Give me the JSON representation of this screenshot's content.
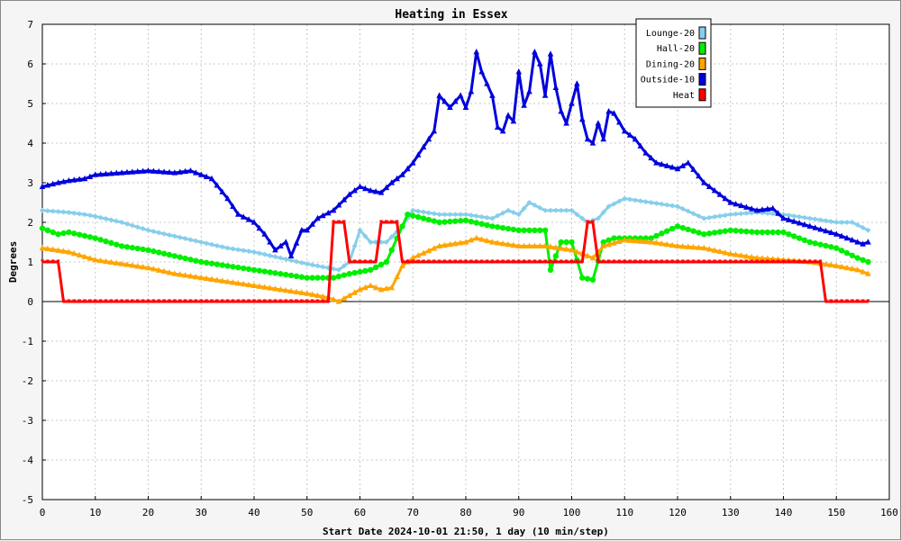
{
  "chart_data": {
    "type": "line",
    "title": "Heating in Essex",
    "xlabel": "Start Date 2024-10-01 21:50, 1 day (10 min/step)",
    "ylabel": "Degrees",
    "xlim": [
      0,
      160
    ],
    "ylim": [
      -5,
      7
    ],
    "x_ticks": [
      0,
      10,
      20,
      30,
      40,
      50,
      60,
      70,
      80,
      90,
      100,
      110,
      120,
      130,
      140,
      150,
      160
    ],
    "y_ticks": [
      -5,
      -4,
      -3,
      -2,
      -1,
      0,
      1,
      2,
      3,
      4,
      5,
      6,
      7
    ],
    "grid": true,
    "legend_position": "top-right",
    "series": [
      {
        "name": "Lounge-20",
        "color": "#87ceeb",
        "marker": "diamond",
        "points": [
          [
            0,
            2.3
          ],
          [
            5,
            2.25
          ],
          [
            8,
            2.2
          ],
          [
            10,
            2.15
          ],
          [
            15,
            2.0
          ],
          [
            20,
            1.8
          ],
          [
            25,
            1.65
          ],
          [
            30,
            1.5
          ],
          [
            35,
            1.35
          ],
          [
            40,
            1.25
          ],
          [
            45,
            1.1
          ],
          [
            50,
            0.95
          ],
          [
            54,
            0.85
          ],
          [
            56,
            0.8
          ],
          [
            58,
            1.0
          ],
          [
            60,
            1.8
          ],
          [
            62,
            1.5
          ],
          [
            65,
            1.5
          ],
          [
            68,
            1.9
          ],
          [
            70,
            2.3
          ],
          [
            75,
            2.2
          ],
          [
            80,
            2.2
          ],
          [
            85,
            2.1
          ],
          [
            88,
            2.3
          ],
          [
            90,
            2.2
          ],
          [
            92,
            2.5
          ],
          [
            95,
            2.3
          ],
          [
            100,
            2.3
          ],
          [
            103,
            2.0
          ],
          [
            105,
            2.1
          ],
          [
            107,
            2.4
          ],
          [
            110,
            2.6
          ],
          [
            115,
            2.5
          ],
          [
            120,
            2.4
          ],
          [
            125,
            2.1
          ],
          [
            130,
            2.2
          ],
          [
            135,
            2.25
          ],
          [
            140,
            2.2
          ],
          [
            145,
            2.1
          ],
          [
            150,
            2.0
          ],
          [
            153,
            2.0
          ],
          [
            156,
            1.8
          ]
        ]
      },
      {
        "name": "Hall-20",
        "color": "#00ee00",
        "marker": "circle",
        "points": [
          [
            0,
            1.85
          ],
          [
            3,
            1.7
          ],
          [
            5,
            1.75
          ],
          [
            10,
            1.6
          ],
          [
            15,
            1.4
          ],
          [
            20,
            1.3
          ],
          [
            25,
            1.15
          ],
          [
            30,
            1.0
          ],
          [
            35,
            0.9
          ],
          [
            40,
            0.8
          ],
          [
            45,
            0.7
          ],
          [
            50,
            0.6
          ],
          [
            55,
            0.6
          ],
          [
            58,
            0.7
          ],
          [
            62,
            0.8
          ],
          [
            65,
            1.0
          ],
          [
            67,
            1.6
          ],
          [
            69,
            2.2
          ],
          [
            72,
            2.1
          ],
          [
            75,
            2.0
          ],
          [
            80,
            2.05
          ],
          [
            85,
            1.9
          ],
          [
            90,
            1.8
          ],
          [
            95,
            1.8
          ],
          [
            96,
            0.8
          ],
          [
            98,
            1.5
          ],
          [
            100,
            1.5
          ],
          [
            102,
            0.6
          ],
          [
            104,
            0.55
          ],
          [
            106,
            1.5
          ],
          [
            108,
            1.6
          ],
          [
            115,
            1.6
          ],
          [
            120,
            1.9
          ],
          [
            125,
            1.7
          ],
          [
            130,
            1.8
          ],
          [
            135,
            1.75
          ],
          [
            140,
            1.75
          ],
          [
            145,
            1.5
          ],
          [
            150,
            1.35
          ],
          [
            154,
            1.1
          ],
          [
            156,
            1.0
          ]
        ]
      },
      {
        "name": "Dining-20",
        "color": "#ffa500",
        "marker": "triangle",
        "points": [
          [
            0,
            1.35
          ],
          [
            5,
            1.25
          ],
          [
            10,
            1.05
          ],
          [
            15,
            0.95
          ],
          [
            20,
            0.85
          ],
          [
            25,
            0.7
          ],
          [
            30,
            0.6
          ],
          [
            35,
            0.5
          ],
          [
            40,
            0.4
          ],
          [
            45,
            0.3
          ],
          [
            50,
            0.2
          ],
          [
            54,
            0.1
          ],
          [
            56,
            0.0
          ],
          [
            58,
            0.15
          ],
          [
            60,
            0.3
          ],
          [
            62,
            0.4
          ],
          [
            64,
            0.3
          ],
          [
            66,
            0.35
          ],
          [
            68,
            0.9
          ],
          [
            70,
            1.1
          ],
          [
            75,
            1.4
          ],
          [
            80,
            1.5
          ],
          [
            82,
            1.6
          ],
          [
            85,
            1.5
          ],
          [
            90,
            1.4
          ],
          [
            95,
            1.4
          ],
          [
            100,
            1.3
          ],
          [
            104,
            1.1
          ],
          [
            106,
            1.4
          ],
          [
            110,
            1.55
          ],
          [
            115,
            1.5
          ],
          [
            120,
            1.4
          ],
          [
            125,
            1.35
          ],
          [
            130,
            1.2
          ],
          [
            135,
            1.1
          ],
          [
            140,
            1.05
          ],
          [
            145,
            1.0
          ],
          [
            150,
            0.9
          ],
          [
            154,
            0.8
          ],
          [
            156,
            0.7
          ]
        ]
      },
      {
        "name": "Outside-10",
        "color": "#0000dd",
        "marker": "triangle",
        "points": [
          [
            0,
            2.9
          ],
          [
            3,
            3.0
          ],
          [
            5,
            3.05
          ],
          [
            8,
            3.1
          ],
          [
            10,
            3.2
          ],
          [
            15,
            3.25
          ],
          [
            20,
            3.3
          ],
          [
            25,
            3.25
          ],
          [
            28,
            3.3
          ],
          [
            32,
            3.1
          ],
          [
            35,
            2.6
          ],
          [
            37,
            2.2
          ],
          [
            40,
            2.0
          ],
          [
            42,
            1.7
          ],
          [
            44,
            1.3
          ],
          [
            46,
            1.5
          ],
          [
            47,
            1.15
          ],
          [
            49,
            1.8
          ],
          [
            50,
            1.8
          ],
          [
            52,
            2.1
          ],
          [
            55,
            2.3
          ],
          [
            58,
            2.7
          ],
          [
            60,
            2.9
          ],
          [
            62,
            2.8
          ],
          [
            64,
            2.75
          ],
          [
            66,
            3.0
          ],
          [
            68,
            3.2
          ],
          [
            70,
            3.5
          ],
          [
            72,
            3.9
          ],
          [
            74,
            4.3
          ],
          [
            75,
            5.2
          ],
          [
            77,
            4.9
          ],
          [
            79,
            5.2
          ],
          [
            80,
            4.9
          ],
          [
            81,
            5.3
          ],
          [
            82,
            6.3
          ],
          [
            83,
            5.8
          ],
          [
            85,
            5.2
          ],
          [
            86,
            4.4
          ],
          [
            87,
            4.3
          ],
          [
            88,
            4.7
          ],
          [
            89,
            4.55
          ],
          [
            90,
            5.8
          ],
          [
            91,
            4.95
          ],
          [
            92,
            5.3
          ],
          [
            93,
            6.3
          ],
          [
            94,
            6.0
          ],
          [
            95,
            5.2
          ],
          [
            96,
            6.25
          ],
          [
            97,
            5.4
          ],
          [
            98,
            4.8
          ],
          [
            99,
            4.5
          ],
          [
            100,
            5.0
          ],
          [
            101,
            5.5
          ],
          [
            102,
            4.6
          ],
          [
            103,
            4.1
          ],
          [
            104,
            4.0
          ],
          [
            105,
            4.5
          ],
          [
            106,
            4.1
          ],
          [
            107,
            4.8
          ],
          [
            108,
            4.75
          ],
          [
            110,
            4.3
          ],
          [
            112,
            4.1
          ],
          [
            114,
            3.75
          ],
          [
            116,
            3.5
          ],
          [
            120,
            3.35
          ],
          [
            122,
            3.5
          ],
          [
            125,
            3.0
          ],
          [
            127,
            2.8
          ],
          [
            130,
            2.5
          ],
          [
            135,
            2.3
          ],
          [
            138,
            2.35
          ],
          [
            140,
            2.1
          ],
          [
            145,
            1.9
          ],
          [
            150,
            1.7
          ],
          [
            155,
            1.45
          ],
          [
            156,
            1.5
          ]
        ]
      },
      {
        "name": "Heat",
        "color": "#ff0000",
        "marker": "tick",
        "points": [
          [
            0,
            1
          ],
          [
            3,
            1
          ],
          [
            4,
            0
          ],
          [
            54,
            0
          ],
          [
            55,
            2
          ],
          [
            57,
            2
          ],
          [
            58,
            1
          ],
          [
            63,
            1
          ],
          [
            64,
            2
          ],
          [
            67,
            2
          ],
          [
            68,
            1
          ],
          [
            102,
            1
          ],
          [
            103,
            2
          ],
          [
            104,
            2
          ],
          [
            105,
            1
          ],
          [
            147,
            1
          ],
          [
            148,
            0
          ],
          [
            156,
            0
          ]
        ]
      }
    ]
  }
}
